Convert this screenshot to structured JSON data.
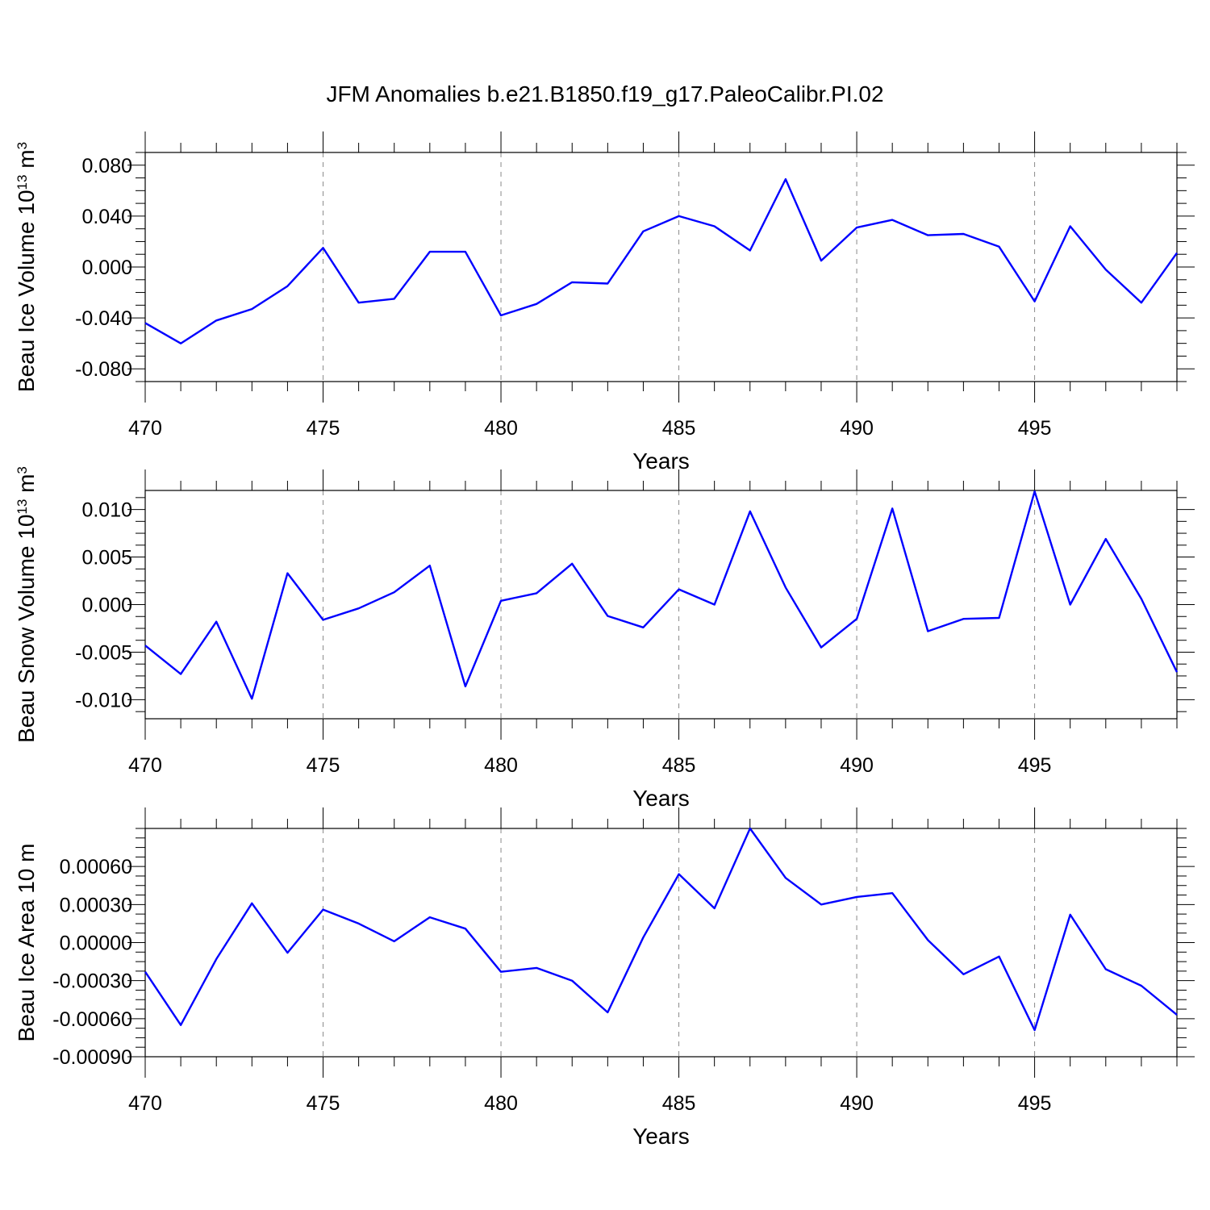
{
  "title": "JFM Anomalies b.e21.B1850.f19_g17.PaleoCalibr.PI.02",
  "colors": {
    "line": "#0000ff",
    "grid": "#8a8a8a",
    "frame": "#000000"
  },
  "chart_data": [
    {
      "type": "line",
      "xlabel": "Years",
      "ylabel_text": "Beau Ice Volume 10",
      "ylabel_sup1": "13",
      "ylabel_unit": " m",
      "ylabel_sup2": "3",
      "xlim": [
        470,
        499
      ],
      "ylim": [
        -0.09,
        0.09
      ],
      "xticks": [
        470,
        475,
        480,
        485,
        490,
        495
      ],
      "xtick_labels": [
        "470",
        "475",
        "480",
        "485",
        "490",
        "495"
      ],
      "yticks": [
        -0.08,
        -0.04,
        0,
        0.04,
        0.08
      ],
      "ytick_labels": [
        "-0.080",
        "-0.040",
        "0.000",
        "0.040",
        "0.080"
      ],
      "grid": "vertical dashed at major x ticks",
      "x": [
        470,
        471,
        472,
        473,
        474,
        475,
        476,
        477,
        478,
        479,
        480,
        481,
        482,
        483,
        484,
        485,
        486,
        487,
        488,
        489,
        490,
        491,
        492,
        493,
        494,
        495,
        496,
        497,
        498,
        499
      ],
      "y": [
        -0.044,
        -0.06,
        -0.042,
        -0.033,
        -0.015,
        0.015,
        -0.028,
        -0.025,
        0.012,
        0.012,
        -0.038,
        -0.029,
        -0.012,
        -0.013,
        0.028,
        0.04,
        0.032,
        0.013,
        0.069,
        0.005,
        0.031,
        0.037,
        0.025,
        0.026,
        0.016,
        -0.027,
        0.032,
        -0.002,
        -0.028,
        0.011
      ]
    },
    {
      "type": "line",
      "xlabel": "Years",
      "ylabel_text": "Beau Snow Volume 10",
      "ylabel_sup1": "13",
      "ylabel_unit": " m",
      "ylabel_sup2": "3",
      "xlim": [
        470,
        499
      ],
      "ylim": [
        -0.012,
        0.012
      ],
      "xticks": [
        470,
        475,
        480,
        485,
        490,
        495
      ],
      "xtick_labels": [
        "470",
        "475",
        "480",
        "485",
        "490",
        "495"
      ],
      "yticks": [
        -0.01,
        -0.005,
        0,
        0.005,
        0.01
      ],
      "ytick_labels": [
        "-0.010",
        "-0.005",
        "0.000",
        "0.005",
        "0.010"
      ],
      "grid": "vertical dashed at major x ticks",
      "x": [
        470,
        471,
        472,
        473,
        474,
        475,
        476,
        477,
        478,
        479,
        480,
        481,
        482,
        483,
        484,
        485,
        486,
        487,
        488,
        489,
        490,
        491,
        492,
        493,
        494,
        495,
        496,
        497,
        498,
        499
      ],
      "y": [
        -0.0043,
        -0.0073,
        -0.0018,
        -0.0099,
        0.0033,
        -0.0016,
        -0.0004,
        0.0013,
        0.0041,
        -0.0086,
        0.0004,
        0.0012,
        0.0043,
        -0.0012,
        -0.0024,
        0.0016,
        0.0,
        0.0098,
        0.0018,
        -0.0045,
        -0.0015,
        0.0101,
        -0.0028,
        -0.0015,
        -0.0014,
        0.0119,
        0.0,
        0.0069,
        0.0006,
        -0.0071
      ]
    },
    {
      "type": "line",
      "xlabel": "Years",
      "ylabel_text": "Beau Ice Area 10",
      "ylabel_sup1": "",
      "ylabel_unit": " m",
      "ylabel_sup2": "",
      "xlim": [
        470,
        499
      ],
      "ylim": [
        -0.0009,
        0.0009
      ],
      "xticks": [
        470,
        475,
        480,
        485,
        490,
        495
      ],
      "xtick_labels": [
        "470",
        "475",
        "480",
        "485",
        "490",
        "495"
      ],
      "yticks": [
        -0.0009,
        -0.0006,
        -0.0003,
        0,
        0.0003,
        0.0006
      ],
      "ytick_labels": [
        "-0.00090",
        "-0.00060",
        "-0.00030",
        "0.00000",
        "0.00030",
        "0.00060"
      ],
      "grid": "vertical dashed at major x ticks",
      "x": [
        470,
        471,
        472,
        473,
        474,
        475,
        476,
        477,
        478,
        479,
        480,
        481,
        482,
        483,
        484,
        485,
        486,
        487,
        488,
        489,
        490,
        491,
        492,
        493,
        494,
        495,
        496,
        497,
        498,
        499
      ],
      "y": [
        -0.00023,
        -0.00065,
        -0.00013,
        0.00031,
        -8e-05,
        0.00026,
        0.00015,
        1e-05,
        0.0002,
        0.00011,
        -0.00023,
        -0.0002,
        -0.0003,
        -0.00055,
        4e-05,
        0.00054,
        0.00027,
        0.0009,
        0.00051,
        0.0003,
        0.00036,
        0.00039,
        2e-05,
        -0.00025,
        -0.00011,
        -0.00069,
        0.00022,
        -0.00021,
        -0.00034,
        -0.00057
      ]
    }
  ]
}
